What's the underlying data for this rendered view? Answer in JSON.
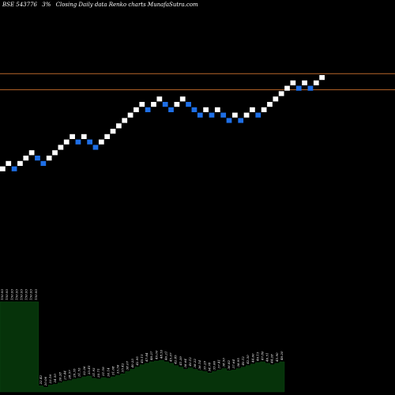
{
  "header": {
    "symbol": "BSE 543776",
    "change": "3%",
    "description": "Closing Daily data Renko charts MunafaSutra.com"
  },
  "colors": {
    "background": "#000000",
    "up_brick": "#ffffff",
    "down_brick": "#1e6fe6",
    "level_line": "#b8652a",
    "volume_fill": "#06330a"
  },
  "chart_data": {
    "type": "renko",
    "brick_size": 1,
    "horizontal_lines": [
      104,
      107
    ],
    "bricks": [
      {
        "value": 89,
        "dir": "up"
      },
      {
        "value": 90,
        "dir": "up"
      },
      {
        "value": 89,
        "dir": "down"
      },
      {
        "value": 90,
        "dir": "up"
      },
      {
        "value": 91,
        "dir": "up"
      },
      {
        "value": 92,
        "dir": "up"
      },
      {
        "value": 91,
        "dir": "down"
      },
      {
        "value": 90,
        "dir": "down"
      },
      {
        "value": 91,
        "dir": "up"
      },
      {
        "value": 92,
        "dir": "up"
      },
      {
        "value": 93,
        "dir": "up"
      },
      {
        "value": 94,
        "dir": "up"
      },
      {
        "value": 95,
        "dir": "up"
      },
      {
        "value": 94,
        "dir": "down"
      },
      {
        "value": 95,
        "dir": "up"
      },
      {
        "value": 94,
        "dir": "down"
      },
      {
        "value": 93,
        "dir": "down"
      },
      {
        "value": 94,
        "dir": "up"
      },
      {
        "value": 95,
        "dir": "up"
      },
      {
        "value": 96,
        "dir": "up"
      },
      {
        "value": 97,
        "dir": "up"
      },
      {
        "value": 98,
        "dir": "up"
      },
      {
        "value": 99,
        "dir": "up"
      },
      {
        "value": 100,
        "dir": "up"
      },
      {
        "value": 101,
        "dir": "up"
      },
      {
        "value": 100,
        "dir": "down"
      },
      {
        "value": 101,
        "dir": "up"
      },
      {
        "value": 102,
        "dir": "up"
      },
      {
        "value": 101,
        "dir": "down"
      },
      {
        "value": 100,
        "dir": "down"
      },
      {
        "value": 101,
        "dir": "up"
      },
      {
        "value": 102,
        "dir": "up"
      },
      {
        "value": 101,
        "dir": "down"
      },
      {
        "value": 100,
        "dir": "down"
      },
      {
        "value": 99,
        "dir": "down"
      },
      {
        "value": 100,
        "dir": "up"
      },
      {
        "value": 99,
        "dir": "down"
      },
      {
        "value": 100,
        "dir": "up"
      },
      {
        "value": 99,
        "dir": "down"
      },
      {
        "value": 98,
        "dir": "down"
      },
      {
        "value": 99,
        "dir": "up"
      },
      {
        "value": 98,
        "dir": "down"
      },
      {
        "value": 99,
        "dir": "up"
      },
      {
        "value": 100,
        "dir": "up"
      },
      {
        "value": 99,
        "dir": "down"
      },
      {
        "value": 100,
        "dir": "up"
      },
      {
        "value": 101,
        "dir": "up"
      },
      {
        "value": 102,
        "dir": "up"
      },
      {
        "value": 103,
        "dir": "up"
      },
      {
        "value": 104,
        "dir": "up"
      },
      {
        "value": 105,
        "dir": "up"
      },
      {
        "value": 104,
        "dir": "down"
      },
      {
        "value": 105,
        "dir": "up"
      },
      {
        "value": 104,
        "dir": "down"
      },
      {
        "value": 105,
        "dir": "up"
      },
      {
        "value": 106,
        "dir": "up"
      }
    ],
    "volume_profile": [
      120,
      120,
      120,
      120,
      120,
      120,
      120,
      120,
      8,
      6,
      9,
      10,
      12,
      14,
      15,
      17,
      18,
      20,
      21,
      18,
      17,
      19,
      18,
      20,
      22,
      24,
      27,
      30,
      33,
      36,
      38,
      40,
      41,
      42,
      40,
      38,
      35,
      33,
      30,
      32,
      30,
      28,
      27,
      25,
      27,
      29,
      31,
      28,
      29,
      31,
      33,
      35,
      37,
      39,
      40,
      38,
      36,
      38,
      40
    ],
    "volume_labels": [
      "150.93",
      "150.93",
      "150.93",
      "150.93",
      "150.93",
      "150.93",
      "150.93",
      "150.93",
      "22.42",
      "20.06",
      "23.16",
      "24.50",
      "26.28",
      "27.44",
      "28.57",
      "29.35",
      "31.53",
      "32.26",
      "33.45",
      "31.93",
      "30.71",
      "31.59",
      "30.14",
      "31.68",
      "33.56",
      "35.42",
      "38.07",
      "40.23",
      "42.95",
      "45.15",
      "47.84",
      "48.27",
      "49.00",
      "48.53",
      "46.21",
      "45.07",
      "42.85",
      "41.39",
      "38.64",
      "40.12",
      "38.22",
      "36.14",
      "35.29",
      "34.78",
      "35.66",
      "37.41",
      "38.50",
      "36.82",
      "37.64",
      "38.95",
      "40.12",
      "42.30",
      "44.60",
      "46.15",
      "47.80",
      "46.51",
      "44.28",
      "45.90",
      "48.20"
    ]
  }
}
